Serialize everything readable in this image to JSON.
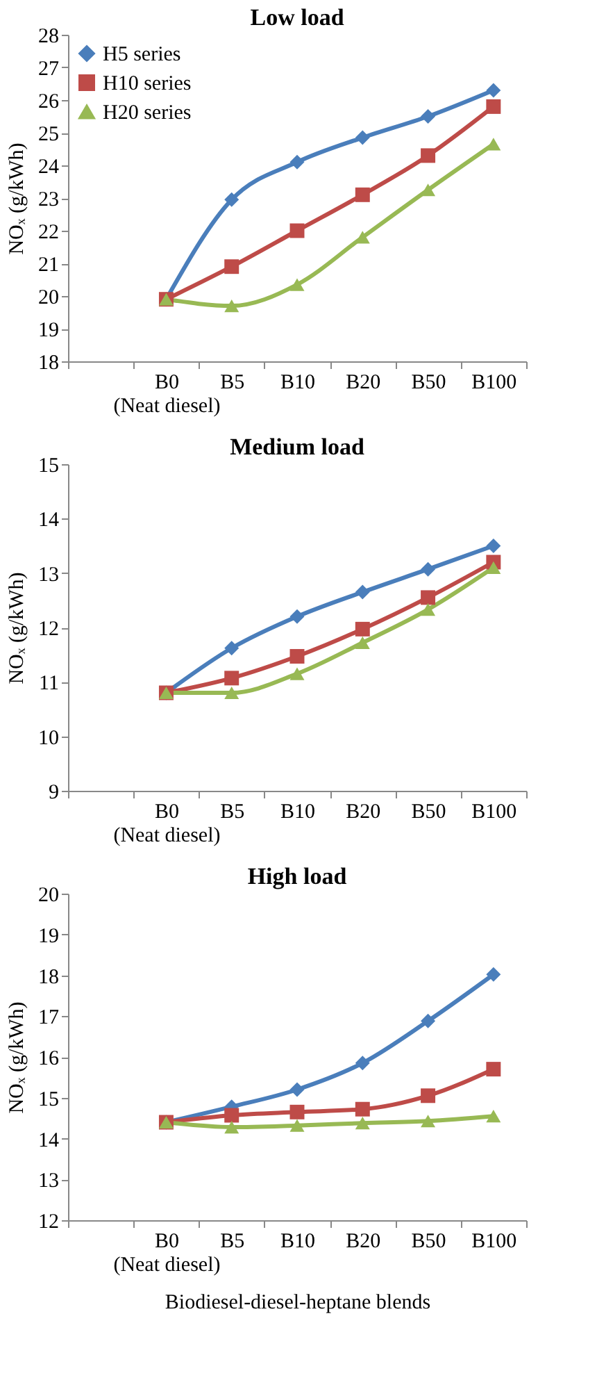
{
  "chart_data": [
    {
      "type": "line",
      "title": "Low load",
      "ylabel": "NOₓ  (g/kWh)",
      "categories": [
        null,
        "B0\n(Neat diesel)",
        "B5",
        "B10",
        "B20",
        "B50",
        "B100"
      ],
      "ylim": [
        18,
        28
      ],
      "yticks": [
        18,
        19,
        20,
        21,
        22,
        23,
        24,
        25,
        26,
        27,
        28
      ],
      "grid": false,
      "legend": "top left",
      "series": [
        {
          "name": "H5 series",
          "color": "#4a7ebb",
          "marker": "diamond",
          "values": [
            null,
            19.9,
            22.95,
            24.1,
            24.85,
            25.5,
            26.3
          ]
        },
        {
          "name": "H10 series",
          "color": "#be4b48",
          "marker": "square",
          "values": [
            null,
            19.9,
            20.9,
            22.0,
            23.1,
            24.3,
            25.8
          ]
        },
        {
          "name": "H20 series",
          "color": "#98b954",
          "marker": "triangle",
          "values": [
            null,
            19.9,
            19.7,
            20.35,
            21.8,
            23.25,
            24.65
          ]
        }
      ]
    },
    {
      "type": "line",
      "title": "Medium load",
      "ylabel": "NOₓ  (g/kWh)",
      "categories": [
        null,
        "B0\n(Neat diesel)",
        "B5",
        "B10",
        "B20",
        "B50",
        "B100"
      ],
      "ylim": [
        9,
        15
      ],
      "yticks": [
        9,
        10,
        11,
        12,
        13,
        14,
        15
      ],
      "grid": false,
      "legend": false,
      "series": [
        {
          "color": "#4a7ebb",
          "marker": "diamond",
          "values": [
            null,
            10.8,
            11.62,
            12.2,
            12.65,
            13.07,
            13.5
          ]
        },
        {
          "color": "#be4b48",
          "marker": "square",
          "values": [
            null,
            10.8,
            11.07,
            11.47,
            11.97,
            12.55,
            13.2
          ]
        },
        {
          "color": "#98b954",
          "marker": "triangle",
          "values": [
            null,
            10.8,
            10.8,
            11.15,
            11.72,
            12.33,
            13.1
          ]
        }
      ]
    },
    {
      "type": "line",
      "title": "High load",
      "ylabel": "NOₓ  (g/kWh)",
      "xlabel": "Biodiesel-diesel-heptane blends",
      "categories": [
        null,
        "B0\n(Neat diesel)",
        "B5",
        "B10",
        "B20",
        "B50",
        "B100"
      ],
      "ylim": [
        12,
        20
      ],
      "yticks": [
        12,
        13,
        14,
        15,
        16,
        17,
        18,
        19,
        20
      ],
      "grid": false,
      "legend": false,
      "series": [
        {
          "color": "#4a7ebb",
          "marker": "diamond",
          "values": [
            null,
            14.4,
            14.78,
            15.2,
            15.85,
            16.88,
            18.02
          ]
        },
        {
          "color": "#be4b48",
          "marker": "square",
          "values": [
            null,
            14.4,
            14.57,
            14.65,
            14.72,
            15.05,
            15.7
          ]
        },
        {
          "color": "#98b954",
          "marker": "triangle",
          "values": [
            null,
            14.4,
            14.28,
            14.32,
            14.38,
            14.43,
            14.55
          ]
        }
      ]
    }
  ]
}
